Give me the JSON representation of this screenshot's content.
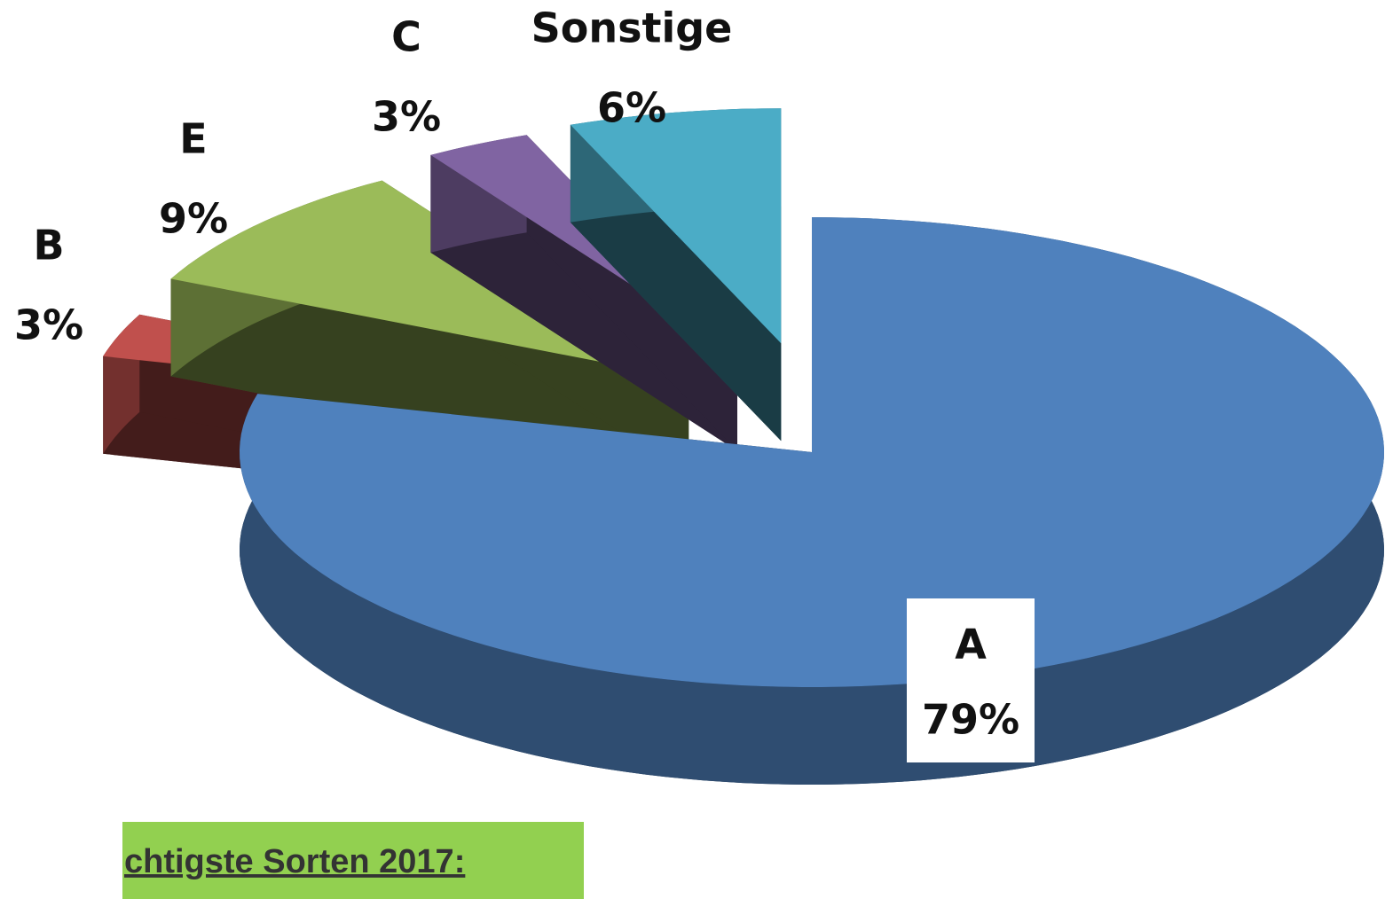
{
  "chart_data": {
    "type": "pie",
    "three_d": true,
    "categories": [
      "A",
      "B",
      "E",
      "C",
      "Sonstige"
    ],
    "values": [
      79,
      3,
      9,
      3,
      6
    ],
    "value_labels": [
      "79%",
      "3%",
      "9%",
      "3%",
      "6%"
    ],
    "colors": [
      "#4f81bd",
      "#c0504d",
      "#9bbb59",
      "#8064a2",
      "#4bacc6"
    ],
    "annotation": "chtigste Sorten 2017:"
  }
}
